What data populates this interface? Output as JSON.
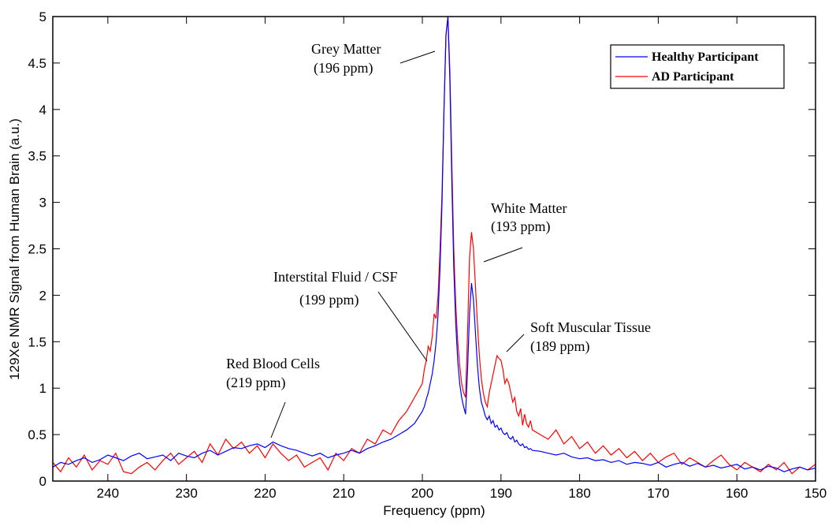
{
  "chart_data": {
    "type": "line",
    "title": "",
    "xlabel": "Frequency (ppm)",
    "ylabel": "129Xe NMR Signal from Human Brain (a.u.)",
    "xlim": [
      247,
      150
    ],
    "x_reversed": true,
    "ylim": [
      0,
      5
    ],
    "xticks": [
      240,
      230,
      220,
      210,
      200,
      190,
      180,
      170,
      160,
      150
    ],
    "yticks": [
      0,
      0.5,
      1,
      1.5,
      2,
      2.5,
      3,
      3.5,
      4,
      4.5,
      5
    ],
    "ytick_labels": [
      "0",
      "0.5",
      "1",
      "1.5",
      "2",
      "2.5",
      "3",
      "3.5",
      "4",
      "4.5",
      "5"
    ],
    "grid": false,
    "legend_position": "top-right",
    "x": [
      247,
      246,
      245,
      244,
      243,
      242,
      241,
      240,
      239,
      238,
      237,
      236,
      235,
      234,
      233,
      232,
      231,
      230,
      229,
      228,
      227,
      226,
      225,
      224,
      223,
      222,
      221,
      220,
      219,
      218,
      217,
      216,
      215,
      214,
      213,
      212,
      211,
      210,
      209,
      208,
      207,
      206,
      205,
      204,
      203,
      202,
      201,
      200,
      199.75,
      199.5,
      199.25,
      199,
      198.75,
      198.5,
      198.25,
      198,
      197.75,
      197.5,
      197.25,
      197,
      196.75,
      196.5,
      196.25,
      196,
      195.75,
      195.5,
      195.25,
      195,
      194.75,
      194.5,
      194.25,
      194,
      193.75,
      193.5,
      193.25,
      193,
      192.75,
      192.5,
      192.25,
      192,
      191.75,
      191.5,
      191.25,
      191,
      190.75,
      190.5,
      190.25,
      190,
      189.75,
      189.5,
      189.25,
      189,
      188.75,
      188.5,
      188.25,
      188,
      187.75,
      187.5,
      187.25,
      187,
      186.75,
      186.5,
      186.25,
      186,
      185,
      184,
      183,
      182,
      181,
      180,
      179,
      178,
      177,
      176,
      175,
      174,
      173,
      172,
      171,
      170,
      169,
      168,
      167,
      166,
      165,
      164,
      163,
      162,
      161,
      160,
      159,
      158,
      157,
      156,
      155,
      154,
      153,
      152,
      151,
      150
    ],
    "series": [
      {
        "name": "Healthy Participant",
        "color": "#0000ff",
        "values": [
          0.15,
          0.2,
          0.18,
          0.22,
          0.25,
          0.2,
          0.23,
          0.28,
          0.25,
          0.22,
          0.27,
          0.3,
          0.24,
          0.26,
          0.28,
          0.22,
          0.3,
          0.27,
          0.25,
          0.3,
          0.33,
          0.28,
          0.32,
          0.36,
          0.35,
          0.38,
          0.4,
          0.36,
          0.42,
          0.38,
          0.35,
          0.33,
          0.3,
          0.27,
          0.3,
          0.25,
          0.28,
          0.3,
          0.33,
          0.3,
          0.35,
          0.38,
          0.42,
          0.45,
          0.5,
          0.55,
          0.62,
          0.75,
          0.8,
          0.88,
          0.95,
          1.05,
          1.15,
          1.3,
          1.5,
          1.8,
          2.3,
          3.0,
          4.0,
          4.8,
          5.0,
          4.3,
          3.2,
          2.3,
          1.7,
          1.3,
          1.05,
          0.9,
          0.8,
          0.72,
          1.2,
          1.8,
          2.13,
          1.95,
          1.6,
          1.25,
          1.0,
          0.85,
          0.78,
          0.7,
          0.66,
          0.7,
          0.62,
          0.65,
          0.58,
          0.6,
          0.55,
          0.57,
          0.52,
          0.5,
          0.52,
          0.47,
          0.45,
          0.48,
          0.42,
          0.44,
          0.4,
          0.38,
          0.4,
          0.36,
          0.37,
          0.34,
          0.35,
          0.33,
          0.32,
          0.3,
          0.28,
          0.3,
          0.26,
          0.24,
          0.25,
          0.22,
          0.23,
          0.2,
          0.22,
          0.18,
          0.2,
          0.19,
          0.17,
          0.2,
          0.15,
          0.18,
          0.2,
          0.16,
          0.19,
          0.15,
          0.17,
          0.14,
          0.16,
          0.18,
          0.13,
          0.15,
          0.12,
          0.16,
          0.14,
          0.1,
          0.13,
          0.15,
          0.12,
          0.14
        ]
      },
      {
        "name": "AD Participant",
        "color": "#ff0000",
        "values": [
          0.2,
          0.1,
          0.25,
          0.15,
          0.28,
          0.12,
          0.22,
          0.18,
          0.3,
          0.1,
          0.08,
          0.15,
          0.2,
          0.12,
          0.22,
          0.3,
          0.18,
          0.25,
          0.32,
          0.2,
          0.4,
          0.28,
          0.45,
          0.35,
          0.42,
          0.3,
          0.38,
          0.25,
          0.4,
          0.3,
          0.22,
          0.28,
          0.15,
          0.2,
          0.25,
          0.12,
          0.3,
          0.22,
          0.35,
          0.3,
          0.45,
          0.4,
          0.55,
          0.5,
          0.65,
          0.75,
          0.9,
          1.05,
          1.2,
          1.3,
          1.45,
          1.4,
          1.55,
          1.8,
          1.75,
          2.0,
          2.5,
          3.1,
          4.0,
          4.8,
          5.0,
          4.4,
          3.4,
          2.5,
          1.9,
          1.5,
          1.25,
          1.05,
          0.95,
          0.9,
          1.6,
          2.4,
          2.68,
          2.5,
          2.1,
          1.7,
          1.35,
          1.1,
          0.95,
          0.85,
          0.8,
          0.95,
          1.05,
          1.15,
          1.25,
          1.35,
          1.32,
          1.3,
          1.2,
          1.05,
          1.1,
          1.05,
          0.95,
          0.85,
          0.9,
          0.75,
          0.7,
          0.78,
          0.6,
          0.72,
          0.62,
          0.58,
          0.65,
          0.55,
          0.5,
          0.45,
          0.55,
          0.4,
          0.48,
          0.35,
          0.42,
          0.3,
          0.38,
          0.28,
          0.35,
          0.25,
          0.32,
          0.22,
          0.3,
          0.2,
          0.26,
          0.3,
          0.18,
          0.25,
          0.2,
          0.15,
          0.22,
          0.28,
          0.18,
          0.12,
          0.2,
          0.15,
          0.1,
          0.18,
          0.12,
          0.2,
          0.08,
          0.15,
          0.12,
          0.18
        ]
      }
    ],
    "annotations": [
      {
        "label": "Grey Matter",
        "sublabel": "(196 ppm)"
      },
      {
        "label": "White Matter",
        "sublabel": "(193 ppm)"
      },
      {
        "label": "Interstital Fluid / CSF",
        "sublabel": "(199 ppm)"
      },
      {
        "label": "Soft Muscular Tissue",
        "sublabel": "(189 ppm)"
      },
      {
        "label": "Red Blood Cells",
        "sublabel": "(219 ppm)"
      }
    ]
  }
}
